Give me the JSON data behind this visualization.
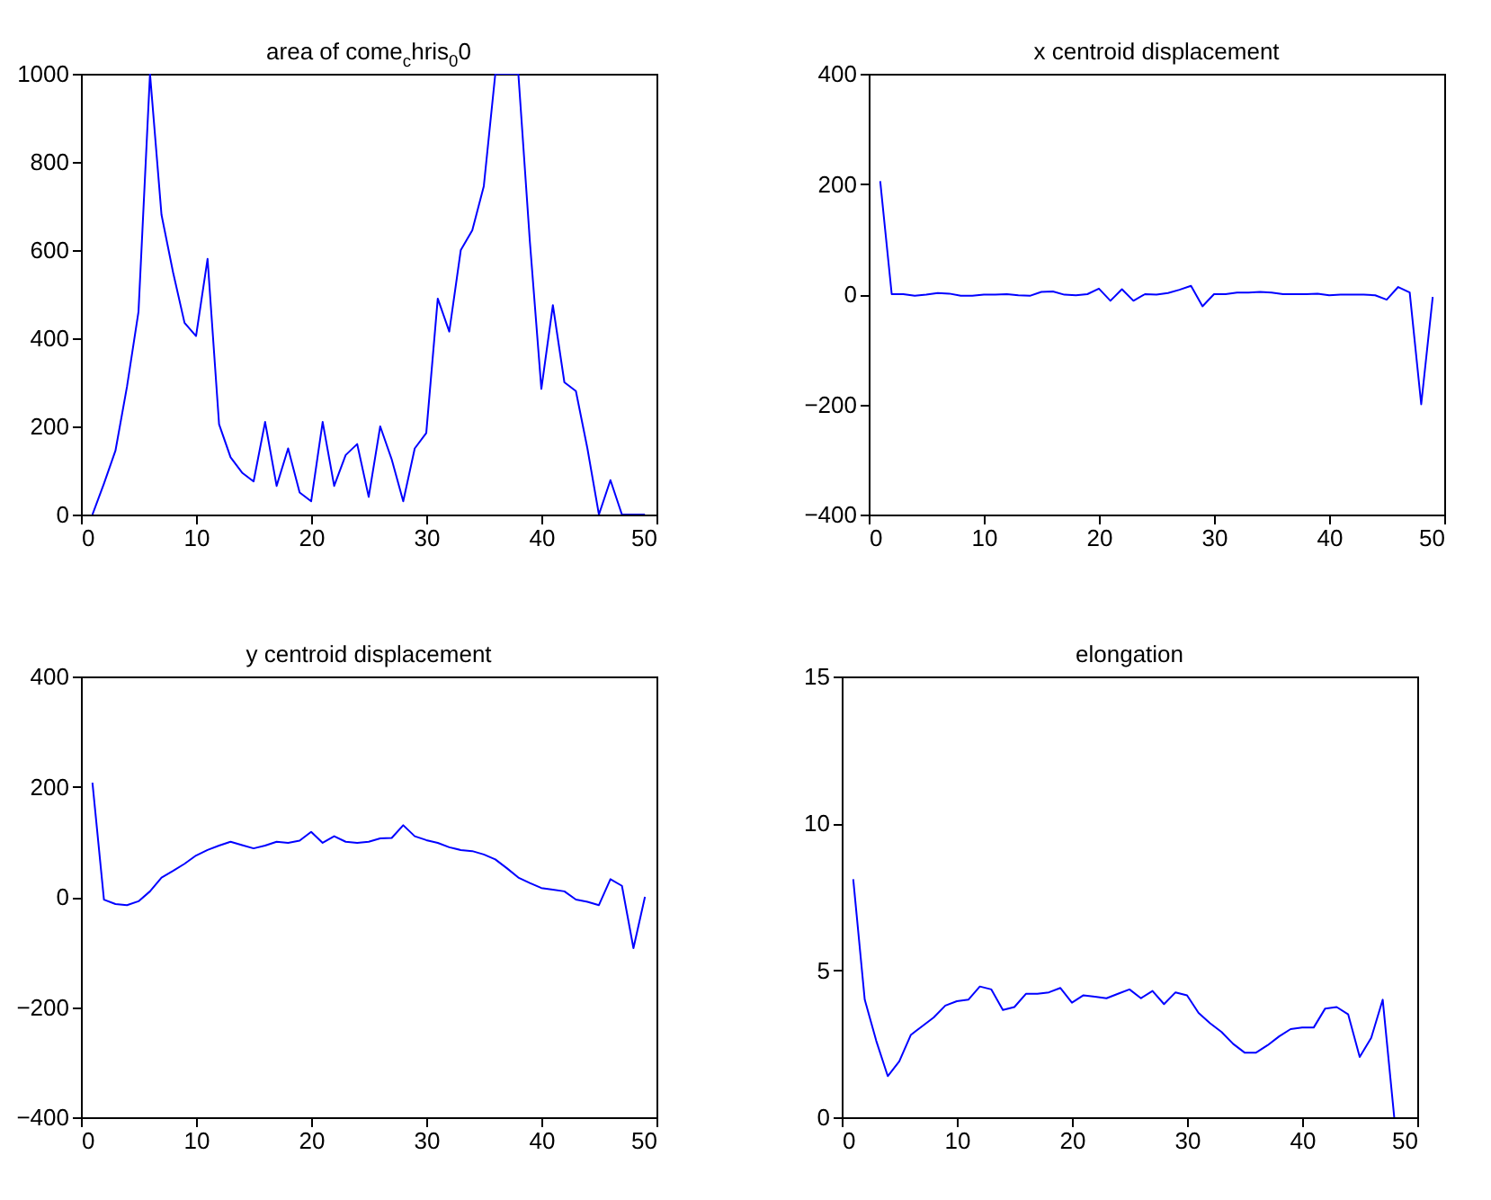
{
  "chart_data": [
    {
      "type": "line",
      "title": "area of come$_{c}$hris$_{0}$0",
      "x": [
        1,
        2,
        3,
        4,
        5,
        6,
        7,
        8,
        9,
        10,
        11,
        12,
        13,
        14,
        15,
        16,
        17,
        18,
        19,
        20,
        21,
        22,
        23,
        24,
        25,
        26,
        27,
        28,
        29,
        30,
        31,
        32,
        33,
        34,
        35,
        36,
        37,
        38,
        39,
        40,
        41,
        42,
        43,
        44,
        45,
        46,
        47,
        48,
        49
      ],
      "series": [
        {
          "color": "#0000ff",
          "values": [
            0,
            70,
            145,
            290,
            460,
            1000,
            680,
            550,
            435,
            405,
            580,
            205,
            130,
            95,
            75,
            210,
            65,
            150,
            50,
            30,
            210,
            65,
            135,
            160,
            40,
            200,
            125,
            30,
            150,
            185,
            490,
            415,
            600,
            645,
            745,
            1000,
            1000,
            1000,
            620,
            285,
            475,
            300,
            280,
            150,
            0,
            78,
            0,
            0,
            0
          ]
        }
      ],
      "xlim": [
        0,
        50
      ],
      "xticks": [
        0,
        10,
        20,
        30,
        40,
        50
      ],
      "ylim": [
        0,
        1000
      ],
      "yticks": [
        0,
        200,
        400,
        600,
        800,
        1000
      ],
      "grid": false
    },
    {
      "type": "line",
      "title": "x centroid displacement",
      "x": [
        1,
        2,
        3,
        4,
        5,
        6,
        7,
        8,
        9,
        10,
        11,
        12,
        13,
        14,
        15,
        16,
        17,
        18,
        19,
        20,
        21,
        22,
        23,
        24,
        25,
        26,
        27,
        28,
        29,
        30,
        31,
        32,
        33,
        34,
        35,
        36,
        37,
        38,
        39,
        40,
        41,
        42,
        43,
        44,
        45,
        46,
        47,
        48,
        49
      ],
      "series": [
        {
          "color": "#0000ff",
          "values": [
            205,
            0,
            0,
            -3,
            -1,
            2,
            1,
            -3,
            -3,
            -1,
            -1,
            0,
            -2,
            -3,
            4,
            5,
            -1,
            -2,
            0,
            10,
            -12,
            9,
            -12,
            0,
            -1,
            2,
            8,
            15,
            -22,
            0,
            0,
            3,
            3,
            4,
            3,
            0,
            0,
            0,
            1,
            -2,
            -1,
            -1,
            -1,
            -2,
            -10,
            13,
            3,
            -200,
            -5
          ]
        }
      ],
      "xlim": [
        0,
        50
      ],
      "xticks": [
        0,
        10,
        20,
        30,
        40,
        50
      ],
      "ylim": [
        -400,
        400
      ],
      "yticks": [
        -400,
        -200,
        0,
        200,
        400
      ],
      "grid": false
    },
    {
      "type": "line",
      "title": "y centroid displacement",
      "x": [
        1,
        2,
        3,
        4,
        5,
        6,
        7,
        8,
        9,
        10,
        11,
        12,
        13,
        14,
        15,
        16,
        17,
        18,
        19,
        20,
        21,
        22,
        23,
        24,
        25,
        26,
        27,
        28,
        29,
        30,
        31,
        32,
        33,
        34,
        35,
        36,
        37,
        38,
        39,
        40,
        41,
        42,
        43,
        44,
        45,
        46,
        47,
        48,
        49
      ],
      "series": [
        {
          "color": "#0000ff",
          "values": [
            207,
            -5,
            -13,
            -15,
            -8,
            10,
            35,
            47,
            60,
            75,
            85,
            93,
            100,
            94,
            88,
            93,
            100,
            98,
            102,
            118,
            98,
            110,
            100,
            98,
            100,
            106,
            107,
            130,
            110,
            103,
            98,
            90,
            85,
            83,
            77,
            68,
            52,
            35,
            25,
            16,
            13,
            10,
            -5,
            -9,
            -15,
            32,
            20,
            -93,
            0
          ]
        }
      ],
      "xlim": [
        0,
        50
      ],
      "xticks": [
        0,
        10,
        20,
        30,
        40,
        50
      ],
      "ylim": [
        -400,
        400
      ],
      "yticks": [
        -400,
        -200,
        0,
        200,
        400
      ],
      "grid": false
    },
    {
      "type": "line",
      "title": "elongation",
      "x": [
        1,
        2,
        3,
        4,
        5,
        6,
        7,
        8,
        9,
        10,
        11,
        12,
        13,
        14,
        15,
        16,
        17,
        18,
        19,
        20,
        21,
        22,
        23,
        24,
        25,
        26,
        27,
        28,
        29,
        30,
        31,
        32,
        33,
        34,
        35,
        36,
        37,
        38,
        39,
        40,
        41,
        42,
        43,
        44,
        45,
        46,
        47,
        48
      ],
      "series": [
        {
          "color": "#0000ff",
          "values": [
            8.1,
            4.0,
            2.6,
            1.4,
            1.9,
            2.8,
            3.1,
            3.4,
            3.8,
            3.95,
            4.0,
            4.45,
            4.35,
            3.65,
            3.75,
            4.2,
            4.2,
            4.25,
            4.4,
            3.9,
            4.15,
            4.1,
            4.05,
            4.2,
            4.35,
            4.05,
            4.3,
            3.85,
            4.25,
            4.15,
            3.55,
            3.2,
            2.9,
            2.5,
            2.2,
            2.2,
            2.45,
            2.75,
            3.0,
            3.05,
            3.05,
            3.7,
            3.75,
            3.5,
            2.05,
            2.7,
            4.0,
            0
          ]
        }
      ],
      "xlim": [
        0,
        50
      ],
      "xticks": [
        0,
        10,
        20,
        30,
        40,
        50
      ],
      "ylim": [
        0,
        15
      ],
      "yticks": [
        0,
        5,
        10,
        15
      ],
      "grid": false
    }
  ]
}
